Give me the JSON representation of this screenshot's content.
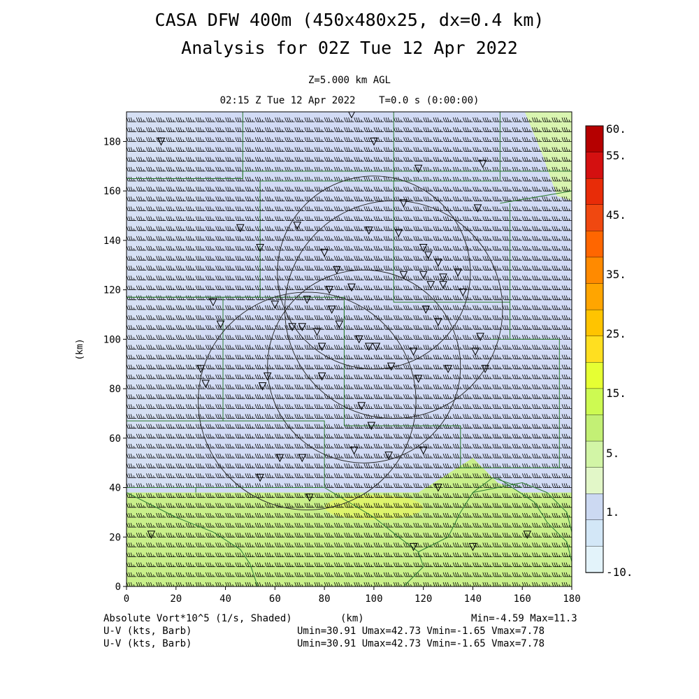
{
  "header": {
    "title_line1": "CASA DFW 400m (450x480x25, dx=0.4 km)",
    "title_line2": "Analysis for 02Z Tue 12 Apr 2022",
    "level": "Z=5.000 km AGL",
    "time": "02:15 Z Tue 12 Apr 2022    T=0.0 s (0:00:00)"
  },
  "footer": {
    "field_label": "Absolute Vort*10^5 (1/s, Shaded)",
    "x_unit": "(km)",
    "minmax": "Min=-4.59 Max=11.3",
    "barb1_label": "U-V (kts, Barb)",
    "barb1_stats": "Umin=30.91 Umax=42.73 Vmin=-1.65 Vmax=7.78",
    "barb2_label": "U-V (kts, Barb)",
    "barb2_stats": "Umin=30.91 Umax=42.73 Vmin=-1.65 Vmax=7.78"
  },
  "chart_data": {
    "type": "heatmap",
    "title": "CASA DFW 400m (450x480x25, dx=0.4 km)",
    "subtitle": "Analysis for 02Z Tue 12 Apr 2022",
    "xlabel": "(km)",
    "ylabel": "(km)",
    "xlim": [
      0,
      180
    ],
    "ylim": [
      0,
      192
    ],
    "x_ticks": [
      "0",
      "20",
      "40",
      "60",
      "80",
      "100",
      "120",
      "140",
      "160",
      "180"
    ],
    "y_ticks": [
      "0",
      "20",
      "40",
      "60",
      "80",
      "100",
      "120",
      "140",
      "160",
      "180"
    ],
    "colorbar": {
      "labels": [
        "60.",
        "55.",
        "45.",
        "35.",
        "25.",
        "15.",
        "5.",
        "1.",
        "-10."
      ],
      "colors": [
        "#b50000",
        "#d41010",
        "#e82c08",
        "#f04810",
        "#ff6600",
        "#ff8a00",
        "#ffa500",
        "#ffc400",
        "#ffdf20",
        "#e6ff33",
        "#cdfa52",
        "#c3f075",
        "#d2f5a6",
        "#e2f7c8",
        "#ccd9f2",
        "#d3e7f7",
        "#e3f3fa"
      ]
    },
    "field_summary": {
      "south_band": {
        "y_range": [
          0,
          38
        ],
        "level": "5",
        "color": "#c9f08a"
      },
      "local_max": {
        "x": 100,
        "y": 32,
        "level": "15",
        "color": "#e2f566"
      },
      "central_area": {
        "level": "1",
        "color": "#d2dbf5"
      },
      "northeast_corner": {
        "level": "5",
        "color": "#d9f5b0"
      }
    },
    "wind": {
      "units": "kts",
      "u_range": [
        30.91,
        42.73
      ],
      "v_range": [
        -1.65,
        7.78
      ],
      "barb_spacing_km": 4
    },
    "range_rings": [
      {
        "center": [
          100,
          127
        ],
        "radius": 39
      },
      {
        "center": [
          96,
          89
        ],
        "radius": 39
      },
      {
        "center": [
          73,
          75
        ],
        "radius": 44
      },
      {
        "center": [
          108,
          112
        ],
        "radius": 44
      }
    ],
    "stations": [
      [
        14,
        180
      ],
      [
        91,
        191
      ],
      [
        100,
        180
      ],
      [
        118,
        169
      ],
      [
        144,
        171
      ],
      [
        46,
        145
      ],
      [
        54,
        137
      ],
      [
        69,
        146
      ],
      [
        80,
        135
      ],
      [
        85,
        128
      ],
      [
        82,
        120
      ],
      [
        91,
        121
      ],
      [
        98,
        144
      ],
      [
        110,
        143
      ],
      [
        112,
        155
      ],
      [
        112,
        126
      ],
      [
        120,
        137
      ],
      [
        122,
        134
      ],
      [
        126,
        131
      ],
      [
        128,
        125
      ],
      [
        134,
        127
      ],
      [
        120,
        126
      ],
      [
        123,
        122
      ],
      [
        128,
        122
      ],
      [
        136,
        119
      ],
      [
        121,
        112
      ],
      [
        126,
        107
      ],
      [
        142,
        153
      ],
      [
        143,
        101
      ],
      [
        141,
        95
      ],
      [
        145,
        88
      ],
      [
        130,
        88
      ],
      [
        116,
        95
      ],
      [
        118,
        84
      ],
      [
        107,
        89
      ],
      [
        101,
        97
      ],
      [
        94,
        100
      ],
      [
        98,
        97
      ],
      [
        79,
        97
      ],
      [
        77,
        103
      ],
      [
        71,
        105
      ],
      [
        67,
        105
      ],
      [
        60,
        114
      ],
      [
        73,
        116
      ],
      [
        83,
        112
      ],
      [
        86,
        106
      ],
      [
        35,
        115
      ],
      [
        38,
        106
      ],
      [
        30,
        88
      ],
      [
        32,
        82
      ],
      [
        55,
        81
      ],
      [
        57,
        85
      ],
      [
        79,
        85
      ],
      [
        95,
        73
      ],
      [
        99,
        65
      ],
      [
        92,
        55
      ],
      [
        106,
        53
      ],
      [
        120,
        55
      ],
      [
        62,
        52
      ],
      [
        71,
        52
      ],
      [
        54,
        44
      ],
      [
        74,
        36
      ],
      [
        126,
        40
      ],
      [
        140,
        16
      ],
      [
        162,
        21
      ],
      [
        10,
        21
      ],
      [
        116,
        16
      ]
    ]
  }
}
